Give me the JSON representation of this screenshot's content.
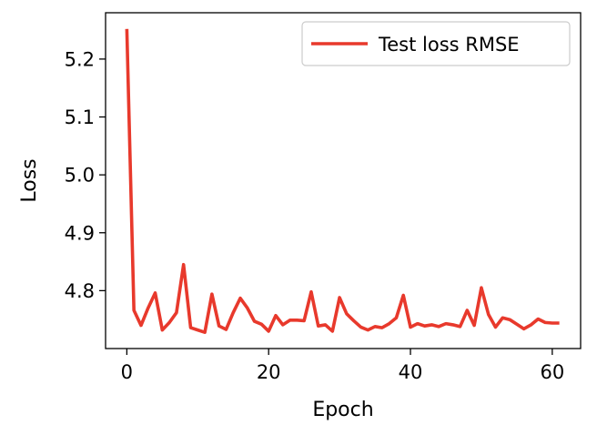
{
  "chart_data": {
    "type": "line",
    "title": "",
    "xlabel": "Epoch",
    "ylabel": "Loss",
    "xlim": [
      -3,
      64
    ],
    "ylim": [
      4.7,
      5.28
    ],
    "xticks": [
      {
        "value": 0,
        "label": "0"
      },
      {
        "value": 20,
        "label": "20"
      },
      {
        "value": 40,
        "label": "40"
      },
      {
        "value": 60,
        "label": "60"
      }
    ],
    "yticks": [
      {
        "value": 4.8,
        "label": "4.8"
      },
      {
        "value": 4.9,
        "label": "4.9"
      },
      {
        "value": 5.0,
        "label": "5.0"
      },
      {
        "value": 5.1,
        "label": "5.1"
      },
      {
        "value": 5.2,
        "label": "5.2"
      }
    ],
    "grid": false,
    "legend_position": "top-right",
    "series": [
      {
        "name": "Test loss RMSE",
        "color": "#e8392c",
        "x": [
          0,
          1,
          2,
          3,
          4,
          5,
          6,
          7,
          8,
          9,
          10,
          11,
          12,
          13,
          14,
          15,
          16,
          17,
          18,
          19,
          20,
          21,
          22,
          23,
          24,
          25,
          26,
          27,
          28,
          29,
          30,
          31,
          32,
          33,
          34,
          35,
          36,
          37,
          38,
          39,
          40,
          41,
          42,
          43,
          44,
          45,
          46,
          47,
          48,
          49,
          50,
          51,
          52,
          53,
          54,
          55,
          56,
          57,
          58,
          59,
          60,
          61
        ],
        "y": [
          5.252,
          4.766,
          4.74,
          4.77,
          4.796,
          4.732,
          4.745,
          4.762,
          4.845,
          4.736,
          4.732,
          4.728,
          4.794,
          4.739,
          4.733,
          4.762,
          4.787,
          4.77,
          4.747,
          4.742,
          4.73,
          4.757,
          4.741,
          4.749,
          4.749,
          4.748,
          4.798,
          4.739,
          4.741,
          4.73,
          4.788,
          4.76,
          4.748,
          4.737,
          4.732,
          4.738,
          4.736,
          4.743,
          4.753,
          4.792,
          4.737,
          4.743,
          4.739,
          4.741,
          4.738,
          4.743,
          4.741,
          4.738,
          4.766,
          4.74,
          4.805,
          4.759,
          4.737,
          4.753,
          4.75,
          4.742,
          4.734,
          4.741,
          4.751,
          4.745,
          4.744,
          4.744
        ]
      }
    ]
  }
}
